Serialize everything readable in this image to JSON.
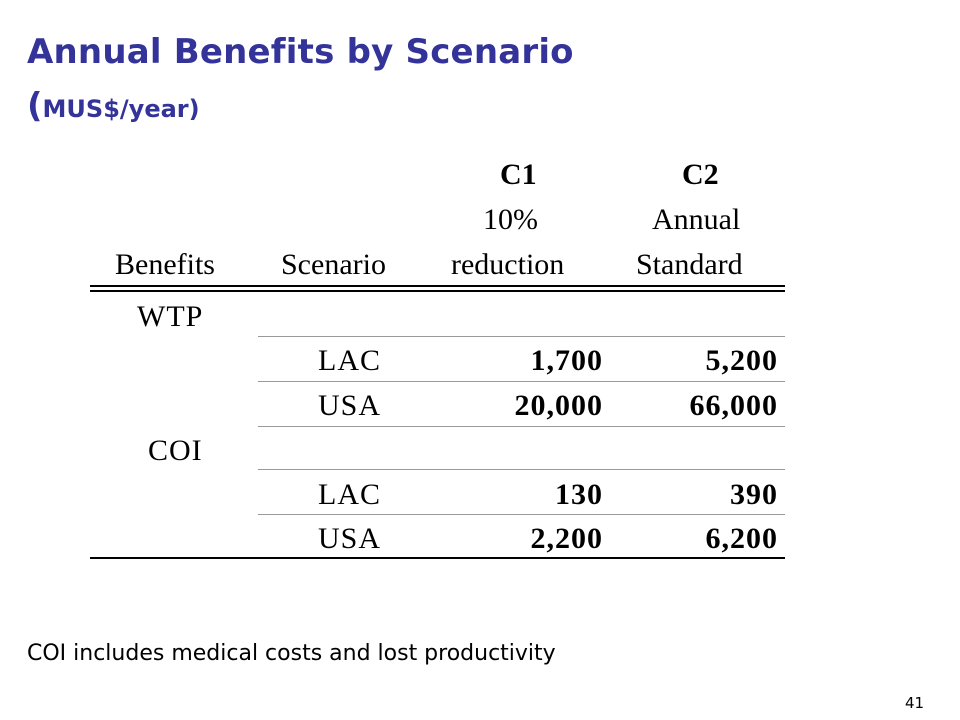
{
  "slide": {
    "title": "Annual Benefits by Scenario",
    "subtitle_open_paren": "(",
    "subtitle_text": "MUS$/year)",
    "footnote": "COI includes medical costs and lost productivity",
    "page_number": "41"
  },
  "table": {
    "headers": {
      "benefits": "Benefits",
      "scenario": "Scenario",
      "c1_code": "C1",
      "c1_line1": "10%",
      "c1_line2": "reduction",
      "c2_code": "C2",
      "c2_line1": "Annual",
      "c2_line2": "Standard"
    },
    "groups": [
      {
        "benefit": "WTP",
        "rows": [
          {
            "scenario": "LAC",
            "c1": "1,700",
            "c2": "5,200"
          },
          {
            "scenario": "USA",
            "c1": "20,000",
            "c2": "66,000"
          }
        ]
      },
      {
        "benefit": "COI",
        "rows": [
          {
            "scenario": "LAC",
            "c1": "130",
            "c2": "390"
          },
          {
            "scenario": "USA",
            "c1": "2,200",
            "c2": "6,200"
          }
        ]
      }
    ]
  }
}
